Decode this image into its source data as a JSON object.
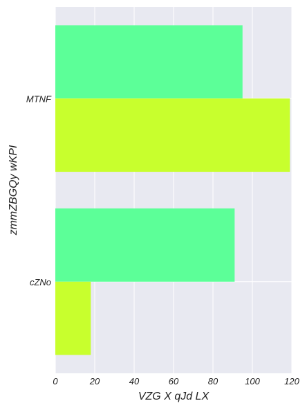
{
  "chart_data": {
    "type": "bar",
    "orientation": "horizontal",
    "categories": [
      "cZNo",
      "MTNF"
    ],
    "series": [
      {
        "values": [
          91,
          95
        ],
        "color": "#5cff98"
      },
      {
        "values": [
          18,
          119
        ],
        "color": "#c8ff2d"
      }
    ],
    "xlabel": "VZG X  qJd LX",
    "ylabel": "zmmZBGQy wKPI",
    "xlim": [
      0,
      120
    ],
    "xticks": [
      0,
      20,
      40,
      60,
      80,
      100,
      120
    ],
    "grid": true,
    "background": "#e8e9f1",
    "grid_color": "#ffffff"
  }
}
